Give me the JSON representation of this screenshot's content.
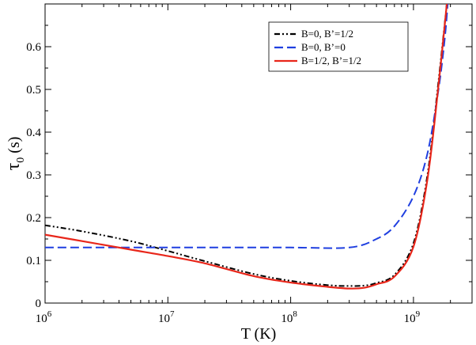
{
  "chart_data": {
    "type": "line",
    "title": "",
    "xlabel": "T (K)",
    "ylabel_symbol": "τ",
    "ylabel_subscript": "0",
    "ylabel_unit": " (s)",
    "xscale": "log",
    "xlim": [
      1000000,
      3000000000
    ],
    "ylim": [
      0,
      0.7
    ],
    "x_ticks": [
      {
        "value": 1000000,
        "base": "10",
        "exp": "6"
      },
      {
        "value": 10000000,
        "base": "10",
        "exp": "7"
      },
      {
        "value": 100000000,
        "base": "10",
        "exp": "8"
      },
      {
        "value": 1000000000,
        "base": "10",
        "exp": "9"
      }
    ],
    "y_ticks": [
      {
        "value": 0,
        "label": "0"
      },
      {
        "value": 0.1,
        "label": "0.1"
      },
      {
        "value": 0.2,
        "label": "0.2"
      },
      {
        "value": 0.3,
        "label": "0.3"
      },
      {
        "value": 0.4,
        "label": "0.4"
      },
      {
        "value": 0.5,
        "label": "0.5"
      },
      {
        "value": 0.6,
        "label": "0.6"
      }
    ],
    "grid": false,
    "legend_position": "top-right",
    "series": [
      {
        "name": "B=0,    B’=1/2",
        "color": "#000000",
        "style": "dash-dot-dot",
        "x": [
          1000000,
          2000000,
          5000000,
          10000000,
          20000000,
          50000000,
          100000000,
          200000000,
          300000000,
          400000000,
          500000000,
          700000000,
          1000000000,
          1300000000,
          1600000000,
          1900000000
        ],
        "y": [
          0.182,
          0.168,
          0.145,
          0.122,
          0.098,
          0.068,
          0.052,
          0.042,
          0.04,
          0.041,
          0.047,
          0.066,
          0.14,
          0.3,
          0.52,
          0.72
        ]
      },
      {
        "name": "B=0,    B’=0",
        "color": "#1f3fe0",
        "style": "dashed",
        "x": [
          1000000,
          3000000,
          10000000,
          30000000,
          100000000,
          300000000,
          500000000,
          700000000,
          1000000000,
          1300000000,
          1600000000,
          1800000000,
          1900000000
        ],
        "y": [
          0.13,
          0.13,
          0.13,
          0.13,
          0.13,
          0.13,
          0.15,
          0.18,
          0.25,
          0.35,
          0.5,
          0.62,
          0.7
        ]
      },
      {
        "name": "B=1/2, B’=1/2",
        "color": "#e8261a",
        "style": "solid",
        "x": [
          1000000,
          2000000,
          5000000,
          10000000,
          20000000,
          50000000,
          100000000,
          200000000,
          300000000,
          400000000,
          500000000,
          700000000,
          1000000000,
          1300000000,
          1600000000,
          1900000000
        ],
        "y": [
          0.16,
          0.145,
          0.125,
          0.11,
          0.093,
          0.063,
          0.048,
          0.038,
          0.034,
          0.036,
          0.044,
          0.062,
          0.132,
          0.29,
          0.51,
          0.72
        ]
      }
    ]
  }
}
